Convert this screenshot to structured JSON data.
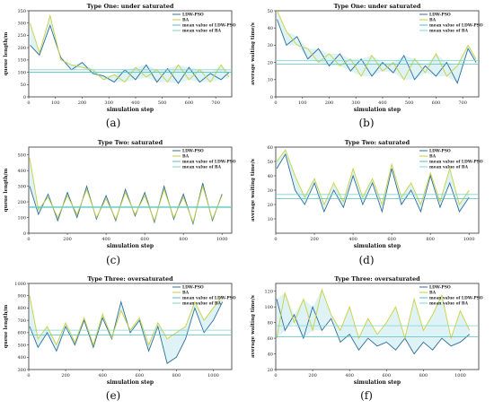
{
  "colors": {
    "ldw": "#2c6f9a",
    "ba": "#c9d13a",
    "mean_ldw": "#52c2c0",
    "mean_ba": "#7fd3d1",
    "fill": "#dff3f7",
    "axis": "#333333"
  },
  "chart_data": [
    {
      "type": "line",
      "caption": "(a)",
      "title": "Type One: under saturated",
      "xlabel": "simulation step",
      "ylabel": "queue length/m",
      "xlim": [
        0,
        760
      ],
      "ylim": [
        0,
        350
      ],
      "xticks": [
        0,
        100,
        200,
        300,
        400,
        500,
        600,
        700
      ],
      "yticks": [
        0,
        50,
        100,
        150,
        200,
        250,
        300,
        350
      ],
      "legend": [
        "LDW-PSO",
        "BA",
        "mean value of LDW-PSO",
        "mean value of BA"
      ],
      "legend_position": "top-right",
      "series": [
        {
          "name": "LDW-PSO",
          "x": [
            5,
            40,
            80,
            120,
            160,
            200,
            240,
            280,
            320,
            360,
            400,
            440,
            480,
            520,
            560,
            600,
            640,
            680,
            720,
            750
          ],
          "y": [
            210,
            170,
            290,
            160,
            110,
            140,
            95,
            85,
            60,
            110,
            70,
            130,
            60,
            115,
            55,
            120,
            60,
            95,
            70,
            100
          ]
        },
        {
          "name": "BA",
          "x": [
            5,
            40,
            80,
            120,
            160,
            200,
            240,
            280,
            320,
            360,
            400,
            440,
            480,
            520,
            560,
            600,
            640,
            680,
            720,
            750
          ],
          "y": [
            300,
            180,
            330,
            150,
            130,
            120,
            110,
            70,
            90,
            60,
            120,
            80,
            110,
            60,
            130,
            70,
            110,
            60,
            130,
            80
          ]
        },
        {
          "name": "mean value of LDW-PSO",
          "x": [
            0,
            760
          ],
          "y": [
            100,
            100
          ]
        },
        {
          "name": "mean value of BA",
          "x": [
            0,
            760
          ],
          "y": [
            110,
            110
          ]
        }
      ]
    },
    {
      "type": "line",
      "caption": "(b)",
      "title": "Type One: under saturated",
      "xlabel": "simulation step",
      "ylabel": "average waiting time/s",
      "xlim": [
        0,
        760
      ],
      "ylim": [
        0,
        50
      ],
      "xticks": [
        0,
        100,
        200,
        300,
        400,
        500,
        600,
        700
      ],
      "yticks": [
        0,
        10,
        20,
        30,
        40,
        50
      ],
      "legend": [
        "LDW-PSO",
        "BA",
        "mean value of LDW-PSO",
        "mean value of BA"
      ],
      "legend_position": "top-right",
      "series": [
        {
          "name": "LDW-PSO",
          "x": [
            5,
            40,
            80,
            120,
            160,
            200,
            240,
            280,
            320,
            360,
            400,
            440,
            480,
            520,
            560,
            600,
            640,
            680,
            720,
            750
          ],
          "y": [
            45,
            30,
            35,
            22,
            28,
            18,
            25,
            15,
            22,
            12,
            20,
            14,
            24,
            10,
            18,
            12,
            20,
            8,
            28,
            20
          ]
        },
        {
          "name": "BA",
          "x": [
            5,
            40,
            80,
            120,
            160,
            200,
            240,
            280,
            320,
            360,
            400,
            440,
            480,
            520,
            560,
            600,
            640,
            680,
            720,
            750
          ],
          "y": [
            50,
            38,
            30,
            28,
            20,
            25,
            18,
            22,
            12,
            24,
            15,
            20,
            10,
            22,
            14,
            25,
            12,
            18,
            30,
            22
          ]
        },
        {
          "name": "mean value of LDW-PSO",
          "x": [
            0,
            760
          ],
          "y": [
            19,
            19
          ]
        },
        {
          "name": "mean value of BA",
          "x": [
            0,
            760
          ],
          "y": [
            21,
            21
          ]
        }
      ]
    },
    {
      "type": "line",
      "caption": "(c)",
      "title": "Type Two: saturated",
      "xlabel": "simulation step",
      "ylabel": "queue length/m",
      "xlim": [
        0,
        1050
      ],
      "ylim": [
        0,
        550
      ],
      "xticks": [
        0,
        200,
        400,
        600,
        800,
        1000
      ],
      "yticks": [
        0,
        100,
        200,
        300,
        400,
        500
      ],
      "legend": [
        "LDW-PSO",
        "BA",
        "mean value of LDW-PSO",
        "mean value of BA"
      ],
      "legend_position": "top-right",
      "series": [
        {
          "name": "LDW-PSO",
          "x": [
            5,
            50,
            100,
            150,
            200,
            250,
            300,
            350,
            400,
            450,
            500,
            550,
            600,
            650,
            700,
            750,
            800,
            850,
            900,
            950,
            1000
          ],
          "y": [
            300,
            120,
            250,
            80,
            260,
            100,
            300,
            90,
            240,
            80,
            280,
            110,
            260,
            70,
            300,
            90,
            250,
            60,
            320,
            80,
            250
          ]
        },
        {
          "name": "BA",
          "x": [
            5,
            50,
            100,
            150,
            200,
            250,
            300,
            350,
            400,
            450,
            500,
            550,
            600,
            650,
            700,
            750,
            800,
            850,
            900,
            950,
            1000
          ],
          "y": [
            480,
            150,
            230,
            100,
            240,
            120,
            280,
            100,
            220,
            90,
            260,
            120,
            240,
            80,
            280,
            100,
            230,
            70,
            300,
            90,
            240
          ]
        },
        {
          "name": "mean value of LDW-PSO",
          "x": [
            0,
            1050
          ],
          "y": [
            165,
            165
          ]
        },
        {
          "name": "mean value of BA",
          "x": [
            0,
            1050
          ],
          "y": [
            170,
            170
          ]
        }
      ]
    },
    {
      "type": "line",
      "caption": "(d)",
      "title": "Type Two: saturated",
      "xlabel": "simulation step",
      "ylabel": "average waiting time/s",
      "xlim": [
        0,
        1050
      ],
      "ylim": [
        0,
        60
      ],
      "xticks": [
        0,
        200,
        400,
        600,
        800,
        1000
      ],
      "yticks": [
        10,
        20,
        30,
        40,
        50,
        60
      ],
      "legend": [
        "LDW-PSO",
        "BA",
        "mean value of LDW-PSO",
        "mean value of BA"
      ],
      "legend_position": "top-right",
      "series": [
        {
          "name": "LDW-PSO",
          "x": [
            5,
            50,
            100,
            150,
            200,
            250,
            300,
            350,
            400,
            450,
            500,
            550,
            600,
            650,
            700,
            750,
            800,
            850,
            900,
            950,
            1000
          ],
          "y": [
            45,
            55,
            30,
            20,
            35,
            15,
            30,
            18,
            40,
            20,
            35,
            15,
            45,
            20,
            30,
            15,
            40,
            18,
            35,
            15,
            25
          ]
        },
        {
          "name": "BA",
          "x": [
            5,
            50,
            100,
            150,
            200,
            250,
            300,
            350,
            400,
            450,
            500,
            550,
            600,
            650,
            700,
            750,
            800,
            850,
            900,
            950,
            1000
          ],
          "y": [
            50,
            58,
            40,
            25,
            38,
            20,
            35,
            22,
            45,
            25,
            38,
            20,
            48,
            25,
            35,
            20,
            42,
            22,
            45,
            20,
            30
          ]
        },
        {
          "name": "mean value of LDW-PSO",
          "x": [
            0,
            1050
          ],
          "y": [
            24,
            24
          ]
        },
        {
          "name": "mean value of BA",
          "x": [
            0,
            1050
          ],
          "y": [
            27,
            27
          ]
        }
      ]
    },
    {
      "type": "line",
      "caption": "(e)",
      "title": "Type Three: oversaturated",
      "xlabel": "simulation step",
      "ylabel": "queue length/m",
      "xlim": [
        0,
        1100
      ],
      "ylim": [
        300,
        1000
      ],
      "xticks": [
        0,
        200,
        400,
        600,
        800,
        1000
      ],
      "yticks": [
        300,
        400,
        500,
        600,
        700,
        800,
        900,
        1000
      ],
      "legend": [
        "LDW-PSO",
        "BA",
        "mean value of LDW-PSO",
        "mean value of BA"
      ],
      "legend_position": "top-right",
      "series": [
        {
          "name": "LDW-PSO",
          "x": [
            5,
            50,
            100,
            150,
            200,
            250,
            300,
            350,
            400,
            450,
            500,
            550,
            600,
            650,
            700,
            750,
            800,
            850,
            900,
            950,
            1000,
            1050
          ],
          "y": [
            650,
            480,
            600,
            450,
            650,
            500,
            700,
            480,
            720,
            550,
            850,
            600,
            700,
            450,
            650,
            350,
            400,
            550,
            800,
            600,
            700,
            850
          ]
        },
        {
          "name": "BA",
          "x": [
            5,
            50,
            100,
            150,
            200,
            250,
            300,
            350,
            400,
            450,
            500,
            550,
            600,
            650,
            700,
            750,
            800,
            850,
            900,
            950,
            1000,
            1050
          ],
          "y": [
            900,
            550,
            650,
            500,
            680,
            520,
            720,
            500,
            750,
            560,
            780,
            620,
            720,
            500,
            680,
            550,
            600,
            650,
            850,
            700,
            800,
            900
          ]
        },
        {
          "name": "mean value of LDW-PSO",
          "x": [
            0,
            1100
          ],
          "y": [
            580,
            580
          ]
        },
        {
          "name": "mean value of BA",
          "x": [
            0,
            1100
          ],
          "y": [
            620,
            620
          ]
        }
      ]
    },
    {
      "type": "line",
      "caption": "(f)",
      "title": "Type Three: oversaturated",
      "xlabel": "simulation step",
      "ylabel": "average waiting time/s",
      "xlim": [
        0,
        1100
      ],
      "ylim": [
        20,
        130
      ],
      "xticks": [
        0,
        200,
        400,
        600,
        800,
        1000
      ],
      "yticks": [
        20,
        40,
        60,
        80,
        100,
        120
      ],
      "legend": [
        "LDW-PSO",
        "BA",
        "mean value of LDW-PSO",
        "mean value of BA"
      ],
      "legend_position": "top-right",
      "series": [
        {
          "name": "LDW-PSO",
          "x": [
            5,
            50,
            100,
            150,
            200,
            250,
            300,
            350,
            400,
            450,
            500,
            550,
            600,
            650,
            700,
            750,
            800,
            850,
            900,
            950,
            1000,
            1050
          ],
          "y": [
            110,
            70,
            90,
            60,
            100,
            70,
            85,
            55,
            65,
            45,
            60,
            50,
            55,
            45,
            60,
            40,
            55,
            45,
            60,
            50,
            55,
            65
          ]
        },
        {
          "name": "BA",
          "x": [
            5,
            50,
            100,
            150,
            200,
            250,
            300,
            350,
            400,
            450,
            500,
            550,
            600,
            650,
            700,
            750,
            800,
            850,
            900,
            950,
            1000,
            1050
          ],
          "y": [
            60,
            118,
            80,
            110,
            70,
            122,
            90,
            70,
            100,
            60,
            85,
            65,
            80,
            100,
            60,
            110,
            70,
            90,
            115,
            60,
            95,
            70
          ]
        },
        {
          "name": "mean value of LDW-PSO",
          "x": [
            0,
            1100
          ],
          "y": [
            62,
            62
          ]
        },
        {
          "name": "mean value of BA",
          "x": [
            0,
            1100
          ],
          "y": [
            76,
            76
          ]
        }
      ]
    }
  ]
}
